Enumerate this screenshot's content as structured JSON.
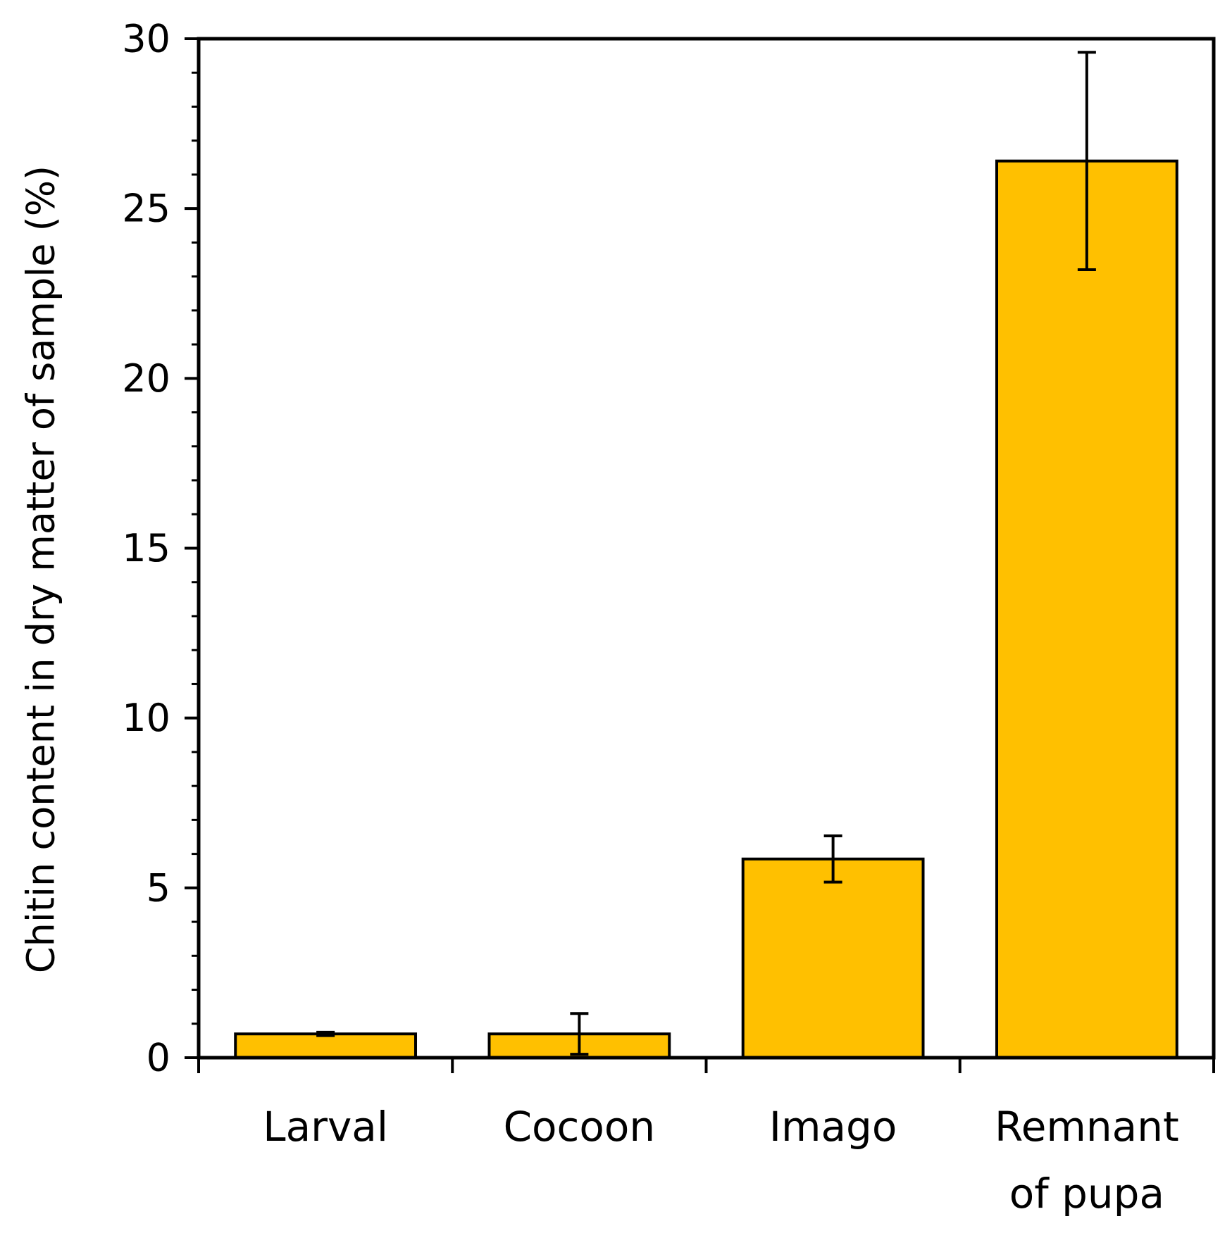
{
  "chart_data": {
    "type": "bar",
    "title": "",
    "xlabel": "",
    "ylabel": "Chitin content in dry matter of sample (%)",
    "ylim": [
      0,
      30
    ],
    "y_major_ticks": [
      0,
      5,
      10,
      15,
      20,
      25,
      30
    ],
    "y_minor_step": 1,
    "grid": false,
    "categories": [
      [
        "Larval"
      ],
      [
        "Cocoon"
      ],
      [
        "Imago"
      ],
      [
        "Remnant",
        "of pupa"
      ]
    ],
    "values": [
      0.7,
      0.7,
      5.85,
      26.4
    ],
    "error": [
      0.05,
      0.6,
      0.68,
      3.2
    ],
    "colors": {
      "bar_fill": "#FFC000",
      "bar_stroke": "#000000",
      "axis": "#000000"
    }
  }
}
